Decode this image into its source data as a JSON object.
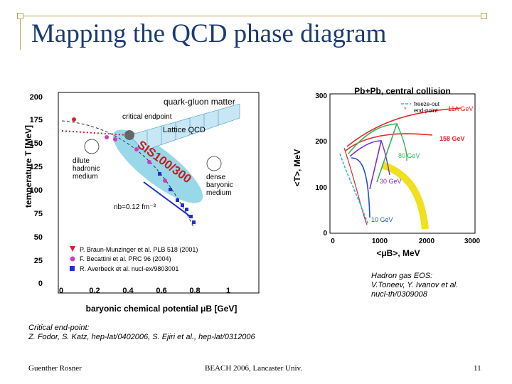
{
  "slide": {
    "title": "Mapping the QCD phase diagram",
    "footer_left": "Guenther Rosner",
    "footer_center": "BEACH 2006, Lancaster Univ.",
    "page_number": "11"
  },
  "notes": {
    "hadron_gas": [
      "Hadron gas EOS:",
      "V.Toneev, Y. Ivanov et al.",
      "nucl-th/0309008"
    ],
    "critical_endpoint": [
      "Critical end-point:",
      "Z. Fodor, S. Katz, hep-lat/0402006, S. Ejiri et al., hep-lat/0312006"
    ]
  },
  "left_plot": {
    "ylabel": "temperature T [MeV]",
    "xlabel": "baryonic chemical potential μB [GeV]",
    "yticks": [
      "200",
      "175",
      "150",
      "125",
      "100",
      "75",
      "50",
      "25",
      "0"
    ],
    "xticks": [
      "0",
      "0.2",
      "0.4",
      "0.6",
      "0.8",
      "1"
    ],
    "labels": {
      "qgm": "quark-gluon matter",
      "critical": "critical endpoint",
      "lattice": "Lattice QCD",
      "dilute": [
        "dilute",
        "hadronic",
        "medium"
      ],
      "dense": [
        "dense",
        "baryonic",
        "medium"
      ],
      "nb": "nb=0.12 fm⁻³",
      "sis": "SIS100/300"
    },
    "legend": [
      "P. Braun-Munzinger et al. PLB 518 (2001)",
      "F. Becattini et al. PRC 96 (2004)",
      "R. Averbeck et al. nucl-ex/9803001"
    ],
    "colors": {
      "red": "#d8202a",
      "magenta": "#cc3cc8",
      "blue": "#2030c8",
      "cyan_band": "#6ec8e0",
      "lattice_band": "#3a9ad0"
    }
  },
  "right_plot": {
    "title": "Pb+Pb, central collision",
    "ylabel": "<T>, MeV",
    "xlabel": "<μB>, MeV",
    "yticks": [
      "300",
      "200",
      "100",
      "0"
    ],
    "xticks": [
      "0",
      "1000",
      "2000",
      "3000"
    ],
    "legend": [
      "freeze-out",
      "end-point"
    ],
    "energies": [
      "11A GeV",
      "158 GeV",
      "80 GeV",
      "30 GeV",
      "10 GeV"
    ],
    "colors": {
      "red": "#e02828",
      "green": "#30b850",
      "purple": "#7a30c8",
      "blue": "#2050d0",
      "cyan": "#28b8e0",
      "yellow": "#f0e020"
    }
  }
}
